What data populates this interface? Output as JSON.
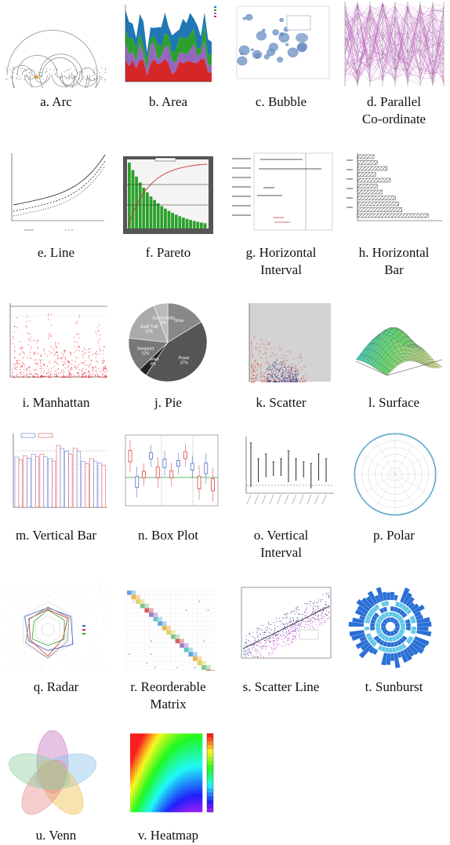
{
  "figure": {
    "captions": [
      "a. Arc",
      "b. Area",
      "c. Bubble",
      "d. Parallel Co-ordinate",
      "e. Line",
      "f. Pareto",
      "g. Horizontal Interval",
      "h. Horizontal Bar",
      "i. Manhattan",
      "j. Pie",
      "k. Scatter",
      "l. Surface",
      "m. Vertical Bar",
      "n. Box Plot",
      "o. Vertical Interval",
      "p. Polar",
      "q. Radar",
      "r. Reorderable Matrix",
      "s. Scatter Line",
      "t. Sunburst",
      "u. Venn",
      "v. Heatmap"
    ]
  },
  "chart_data": [
    {
      "type": "arc",
      "caption_index": 0
    },
    {
      "type": "area",
      "caption_index": 1,
      "series": [
        {
          "color": "#d62728"
        },
        {
          "color": "#9467bd"
        },
        {
          "color": "#2ca02c"
        },
        {
          "color": "#1f77b4"
        }
      ]
    },
    {
      "type": "scatter",
      "subtype": "bubble",
      "caption_index": 2,
      "color": "#6a8fc4"
    },
    {
      "type": "line",
      "subtype": "parallel-coordinates",
      "caption_index": 3,
      "color": "#a640a6"
    },
    {
      "type": "line",
      "caption_index": 4
    },
    {
      "type": "bar",
      "subtype": "pareto",
      "caption_index": 5,
      "bar_color": "#2ca02c",
      "line_color": "#cc3333",
      "background": "#555555"
    },
    {
      "type": "interval",
      "orientation": "horizontal",
      "caption_index": 6
    },
    {
      "type": "bar",
      "orientation": "horizontal",
      "caption_index": 7,
      "values": [
        0.2,
        0.24,
        0.36,
        0.22,
        0.4,
        0.24,
        0.3,
        0.46,
        0.5,
        0.54,
        0.86
      ]
    },
    {
      "type": "scatter",
      "subtype": "manhattan",
      "caption_index": 8,
      "color": "#e8101a"
    },
    {
      "type": "pie",
      "caption_index": 9,
      "labels": [
        "Other",
        "Power",
        "Lasted",
        "Swapped",
        "Audit Trail",
        "Social media"
      ],
      "percents": [
        "",
        "37%",
        "3%",
        "12%",
        "15%",
        "5%"
      ],
      "values": [
        14,
        37,
        3,
        12,
        15,
        5
      ]
    },
    {
      "type": "scatter",
      "caption_index": 10,
      "colors": [
        "#d63a2a",
        "#2b3a8c"
      ]
    },
    {
      "type": "surface",
      "caption_index": 11
    },
    {
      "type": "bar",
      "orientation": "vertical",
      "caption_index": 12,
      "colors": [
        "#3a58c4",
        "#d42828"
      ],
      "values": [
        0.68,
        0.7,
        0.72,
        0.72,
        0.66,
        0.84,
        0.76,
        0.8,
        0.62,
        0.66,
        0.6
      ]
    },
    {
      "type": "box",
      "caption_index": 13,
      "colors": [
        "#d42828",
        "#3a58c4"
      ]
    },
    {
      "type": "interval",
      "orientation": "vertical",
      "caption_index": 14
    },
    {
      "type": "polar",
      "caption_index": 15,
      "color": "#2a9bd6"
    },
    {
      "type": "radar",
      "caption_index": 16
    },
    {
      "type": "heatmap",
      "subtype": "reorderable-matrix",
      "caption_index": 17
    },
    {
      "type": "scatter",
      "subtype": "scatter-line",
      "caption_index": 18,
      "colors": [
        "#2b2b8c",
        "#c43cc4"
      ]
    },
    {
      "type": "sunburst",
      "caption_index": 19,
      "colors": [
        "#2a6fd6",
        "#5fc8e8"
      ]
    },
    {
      "type": "venn",
      "caption_index": 20,
      "sets": 5
    },
    {
      "type": "heatmap",
      "caption_index": 21,
      "colormap": "rainbow"
    }
  ]
}
